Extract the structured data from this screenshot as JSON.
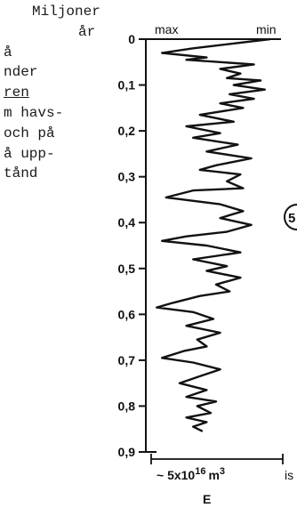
{
  "text_lines": [
    "Miljoner",
    "år",
    "å",
    "nder",
    "ren",
    "m havs-",
    "och på",
    "å upp-",
    "tånd"
  ],
  "chart_data": {
    "type": "line",
    "orientation": "vertical",
    "top_labels": {
      "left": "max",
      "right": "min"
    },
    "y_ticks": [
      "0",
      "0,1",
      "0,2",
      "0,3",
      "0,4",
      "0,5",
      "0,6",
      "0,7",
      "0,8",
      "0,9"
    ],
    "ylim": [
      0,
      0.9
    ],
    "xlim": [
      0,
      1
    ],
    "scale_label": "~ 5x10",
    "scale_exponent": "16",
    "scale_unit": "m",
    "scale_unit_exp": "3",
    "scale_suffix": "is",
    "xlabel": "E",
    "marker_label": "5",
    "series": [
      {
        "points": [
          [
            0.92,
            0.0
          ],
          [
            0.35,
            0.02
          ],
          [
            0.12,
            0.03
          ],
          [
            0.45,
            0.04
          ],
          [
            0.3,
            0.045
          ],
          [
            0.8,
            0.055
          ],
          [
            0.55,
            0.065
          ],
          [
            0.7,
            0.075
          ],
          [
            0.6,
            0.085
          ],
          [
            0.85,
            0.09
          ],
          [
            0.65,
            0.1
          ],
          [
            0.88,
            0.11
          ],
          [
            0.62,
            0.12
          ],
          [
            0.8,
            0.13
          ],
          [
            0.55,
            0.14
          ],
          [
            0.72,
            0.15
          ],
          [
            0.4,
            0.165
          ],
          [
            0.65,
            0.18
          ],
          [
            0.3,
            0.19
          ],
          [
            0.55,
            0.205
          ],
          [
            0.35,
            0.215
          ],
          [
            0.68,
            0.23
          ],
          [
            0.45,
            0.245
          ],
          [
            0.78,
            0.26
          ],
          [
            0.52,
            0.275
          ],
          [
            0.4,
            0.285
          ],
          [
            0.7,
            0.295
          ],
          [
            0.6,
            0.31
          ],
          [
            0.72,
            0.325
          ],
          [
            0.35,
            0.33
          ],
          [
            0.15,
            0.345
          ],
          [
            0.55,
            0.36
          ],
          [
            0.72,
            0.375
          ],
          [
            0.55,
            0.39
          ],
          [
            0.78,
            0.405
          ],
          [
            0.6,
            0.42
          ],
          [
            0.3,
            0.43
          ],
          [
            0.12,
            0.44
          ],
          [
            0.45,
            0.45
          ],
          [
            0.7,
            0.465
          ],
          [
            0.35,
            0.48
          ],
          [
            0.6,
            0.495
          ],
          [
            0.45,
            0.505
          ],
          [
            0.7,
            0.52
          ],
          [
            0.52,
            0.535
          ],
          [
            0.62,
            0.55
          ],
          [
            0.4,
            0.56
          ],
          [
            0.2,
            0.575
          ],
          [
            0.08,
            0.585
          ],
          [
            0.35,
            0.595
          ],
          [
            0.5,
            0.61
          ],
          [
            0.3,
            0.625
          ],
          [
            0.55,
            0.64
          ],
          [
            0.38,
            0.655
          ],
          [
            0.45,
            0.67
          ],
          [
            0.28,
            0.68
          ],
          [
            0.12,
            0.695
          ],
          [
            0.35,
            0.705
          ],
          [
            0.55,
            0.72
          ],
          [
            0.4,
            0.735
          ],
          [
            0.25,
            0.75
          ],
          [
            0.45,
            0.765
          ],
          [
            0.3,
            0.78
          ],
          [
            0.52,
            0.79
          ],
          [
            0.38,
            0.8
          ],
          [
            0.48,
            0.815
          ],
          [
            0.3,
            0.825
          ],
          [
            0.45,
            0.835
          ],
          [
            0.35,
            0.845
          ],
          [
            0.42,
            0.855
          ]
        ]
      }
    ]
  }
}
